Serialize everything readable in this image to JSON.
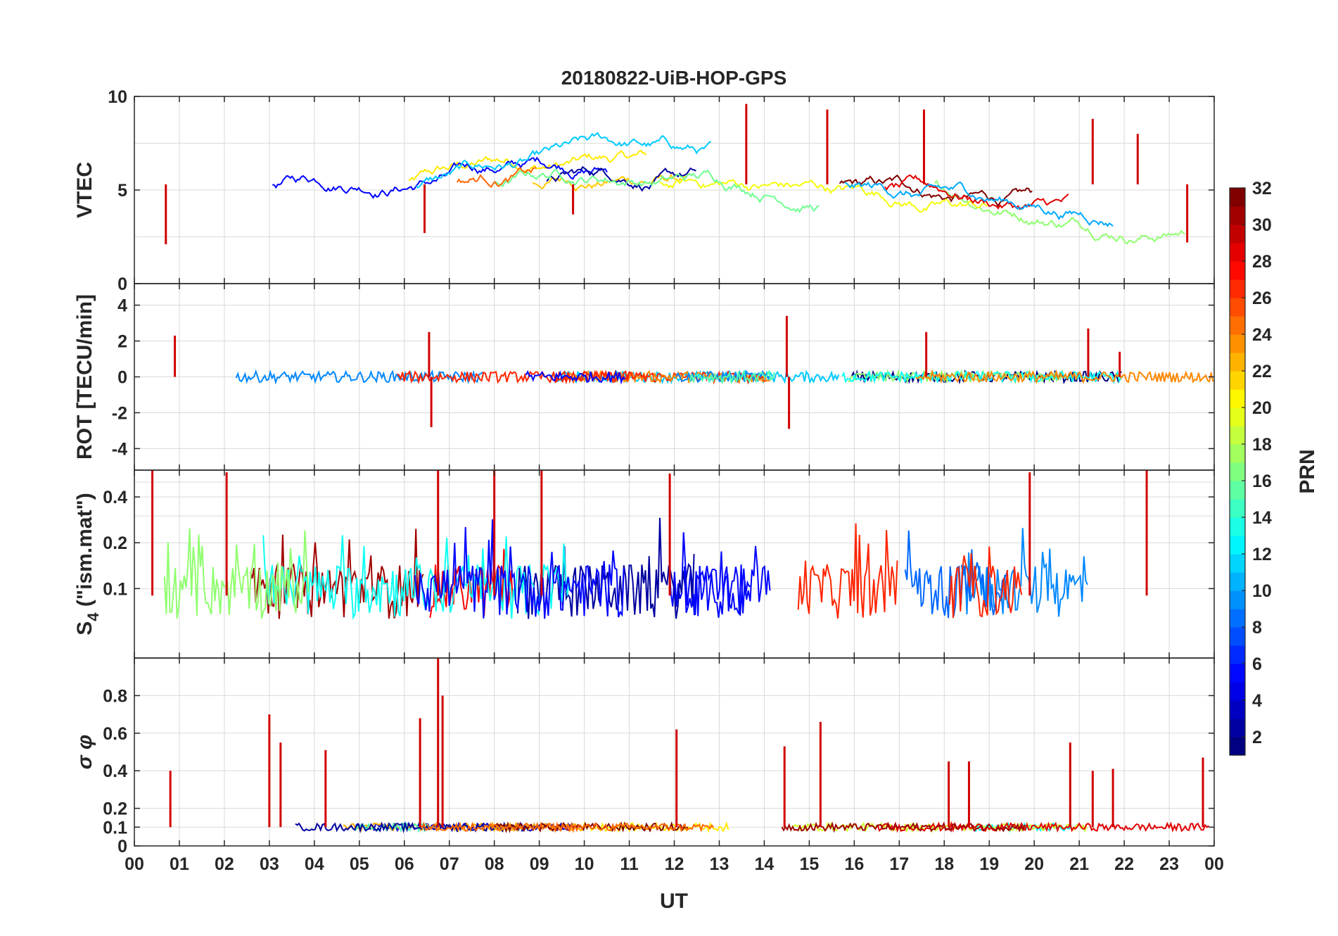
{
  "title": "20180822-UiB-HOP-GPS",
  "colors": {
    "axis": "#262626",
    "grid": "#d9d9d9",
    "colormap": [
      "#00008f",
      "#0000ff",
      "#0080ff",
      "#00ffff",
      "#80ff80",
      "#ffff00",
      "#ff8000",
      "#ff0000",
      "#800000"
    ]
  },
  "chart_data": {
    "type": "line",
    "title": "20180822-UiB-HOP-GPS",
    "xlabel": "UT",
    "x_ticks": [
      "00",
      "01",
      "02",
      "03",
      "04",
      "05",
      "06",
      "07",
      "08",
      "09",
      "10",
      "11",
      "12",
      "13",
      "14",
      "15",
      "16",
      "17",
      "18",
      "19",
      "20",
      "21",
      "22",
      "23",
      "00"
    ],
    "xlim": [
      0,
      24
    ],
    "panels": [
      {
        "name": "vtec",
        "ylabel": "VTEC",
        "ylim": [
          0,
          10
        ],
        "y_ticks": [
          {
            "v": 0,
            "t": "0"
          },
          {
            "v": 5,
            "t": "5"
          },
          {
            "v": 10,
            "t": "10"
          }
        ],
        "grid_y": [
          2.5,
          5,
          7.5
        ],
        "baseline": 5.3,
        "noise": 0.35,
        "spikes": [
          {
            "x": 0.7,
            "v": 2.1
          },
          {
            "x": 6.45,
            "v": 2.7
          },
          {
            "x": 9.75,
            "v": 3.7
          },
          {
            "x": 13.6,
            "v": 9.6
          },
          {
            "x": 15.4,
            "v": 9.3
          },
          {
            "x": 17.55,
            "v": 9.3
          },
          {
            "x": 21.3,
            "v": 8.8
          },
          {
            "x": 22.3,
            "v": 8.0
          },
          {
            "x": 23.4,
            "v": 2.2
          }
        ]
      },
      {
        "name": "rot",
        "ylabel": "ROT [TECU/min]",
        "ylim": [
          -5.2,
          5.2
        ],
        "y_ticks": [
          {
            "v": -4,
            "t": "-4"
          },
          {
            "v": -2,
            "t": "-2"
          },
          {
            "v": 0,
            "t": "0"
          },
          {
            "v": 2,
            "t": "2"
          },
          {
            "v": 4,
            "t": "4"
          }
        ],
        "grid_y": [
          -4,
          -2,
          0,
          2,
          4
        ],
        "baseline": 0,
        "noise": 0.3,
        "spikes": [
          {
            "x": 0.9,
            "v": 2.3
          },
          {
            "x": 6.55,
            "v": 2.5
          },
          {
            "x": 6.6,
            "v": -2.8
          },
          {
            "x": 14.5,
            "v": 3.4
          },
          {
            "x": 14.55,
            "v": -2.9
          },
          {
            "x": 17.6,
            "v": 2.5
          },
          {
            "x": 21.2,
            "v": 2.7
          },
          {
            "x": 21.9,
            "v": 1.4
          }
        ]
      },
      {
        "name": "s4",
        "ylabel": "S4 (\"ism.mat\")",
        "ylabel_sub": "4",
        "ylabel_main": "S",
        "ylabel_rest": " (\"ism.mat\")",
        "ylim": [
          0.035,
          0.6
        ],
        "log": true,
        "y_ticks": [
          {
            "v": 0.1,
            "t": "0.1"
          },
          {
            "v": 0.2,
            "t": "0.2"
          },
          {
            "v": 0.4,
            "t": "0.4"
          }
        ],
        "grid_y": [
          0.1,
          0.2,
          0.3,
          0.4,
          0.5
        ],
        "baseline": 0.09,
        "noise": 0.06,
        "spikes": [
          {
            "x": 0.4,
            "v": 0.6
          },
          {
            "x": 2.05,
            "v": 0.58
          },
          {
            "x": 6.75,
            "v": 0.6
          },
          {
            "x": 8.0,
            "v": 0.6
          },
          {
            "x": 9.05,
            "v": 0.6
          },
          {
            "x": 11.9,
            "v": 0.57
          },
          {
            "x": 19.9,
            "v": 0.58
          },
          {
            "x": 22.5,
            "v": 0.6
          }
        ]
      },
      {
        "name": "sigma_phi",
        "ylabel": "σ φ",
        "ylim": [
          0,
          1
        ],
        "y_ticks": [
          {
            "v": 0,
            "t": "0"
          },
          {
            "v": 0.1,
            "t": "0.1"
          },
          {
            "v": 0.2,
            "t": "0.2"
          },
          {
            "v": 0.4,
            "t": "0.4"
          },
          {
            "v": 0.6,
            "t": "0.6"
          },
          {
            "v": 0.8,
            "t": "0.8"
          }
        ],
        "grid_y": [
          0.1,
          0.2,
          0.4,
          0.6,
          0.8
        ],
        "baseline": 0.1,
        "noise": 0.02,
        "spikes": [
          {
            "x": 0.8,
            "v": 0.4
          },
          {
            "x": 3.0,
            "v": 0.7
          },
          {
            "x": 3.25,
            "v": 0.55
          },
          {
            "x": 4.25,
            "v": 0.51
          },
          {
            "x": 6.35,
            "v": 0.68
          },
          {
            "x": 6.75,
            "v": 1.0
          },
          {
            "x": 6.85,
            "v": 0.8
          },
          {
            "x": 12.05,
            "v": 0.62
          },
          {
            "x": 14.45,
            "v": 0.53
          },
          {
            "x": 15.25,
            "v": 0.66
          },
          {
            "x": 18.1,
            "v": 0.45
          },
          {
            "x": 18.55,
            "v": 0.45
          },
          {
            "x": 20.8,
            "v": 0.55
          },
          {
            "x": 21.3,
            "v": 0.4
          },
          {
            "x": 21.75,
            "v": 0.41
          },
          {
            "x": 23.75,
            "v": 0.47
          }
        ]
      }
    ],
    "colorbar": {
      "label": "PRN",
      "range": [
        1,
        32
      ],
      "ticks": [
        "2",
        "4",
        "6",
        "8",
        "10",
        "12",
        "14",
        "16",
        "18",
        "20",
        "22",
        "24",
        "26",
        "28",
        "30",
        "32"
      ]
    }
  }
}
